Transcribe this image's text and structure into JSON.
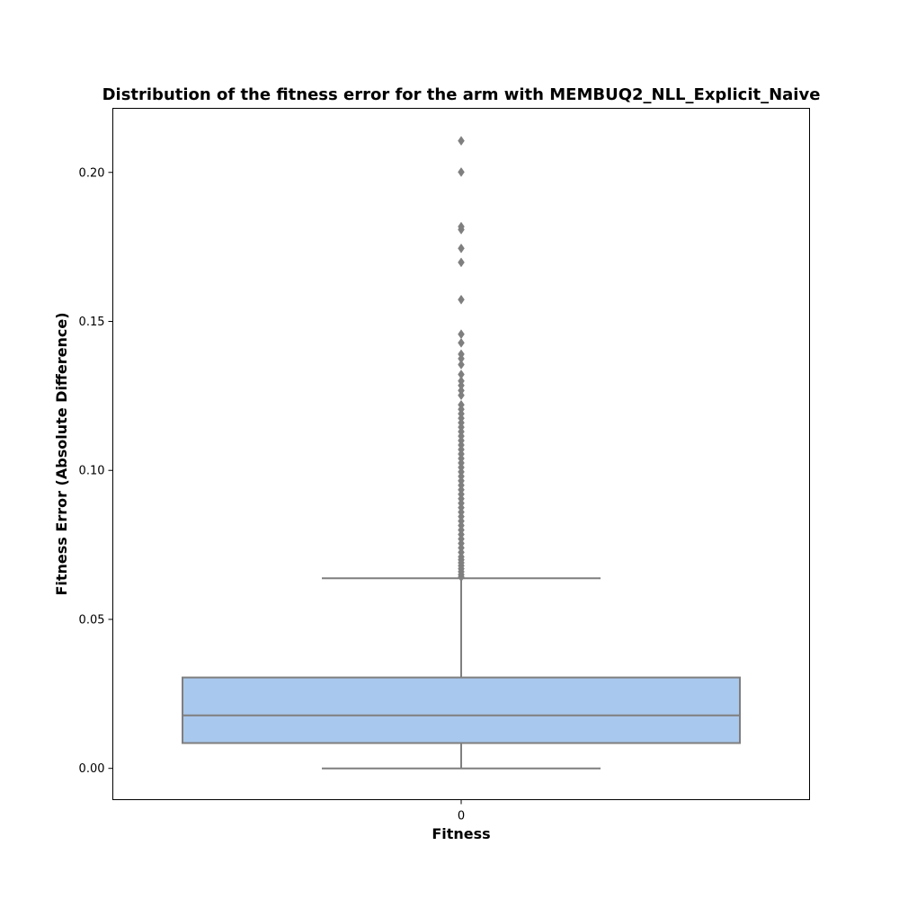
{
  "chart_data": {
    "type": "box",
    "title": "Distribution of the fitness error for the arm with MEMBUQ2_NLL_Explicit_Naive",
    "xlabel": "Fitness",
    "ylabel": "Fitness Error (Absolute Difference)",
    "categories": [
      "0"
    ],
    "ylim": [
      -0.0105,
      0.2215
    ],
    "y_ticks": [
      0.0,
      0.05,
      0.1,
      0.15,
      0.2
    ],
    "y_tick_labels": [
      "0.00",
      "0.05",
      "0.10",
      "0.15",
      "0.20"
    ],
    "box": {
      "whisker_low": 0.0,
      "q1": 0.0085,
      "median": 0.0178,
      "q3": 0.0305,
      "whisker_high": 0.0638
    },
    "outliers": [
      0.2106,
      0.2001,
      0.1818,
      0.1808,
      0.1745,
      0.1698,
      0.1573,
      0.1457,
      0.1428,
      0.139,
      0.1375,
      0.1355,
      0.1322,
      0.13,
      0.1285,
      0.1268,
      0.1252,
      0.122,
      0.1205,
      0.119,
      0.1175,
      0.116,
      0.1145,
      0.113,
      0.1115,
      0.11,
      0.1085,
      0.107,
      0.1055,
      0.104,
      0.1025,
      0.101,
      0.0995,
      0.098,
      0.0965,
      0.095,
      0.0935,
      0.092,
      0.0905,
      0.089,
      0.0875,
      0.086,
      0.0845,
      0.083,
      0.0815,
      0.08,
      0.0785,
      0.077,
      0.0755,
      0.074,
      0.0725,
      0.071,
      0.07,
      0.069,
      0.068,
      0.067,
      0.066,
      0.065,
      0.0642
    ],
    "box_color": "#a9c8ed",
    "line_color": "#7f7f7f",
    "grid": false,
    "legend": "none"
  }
}
